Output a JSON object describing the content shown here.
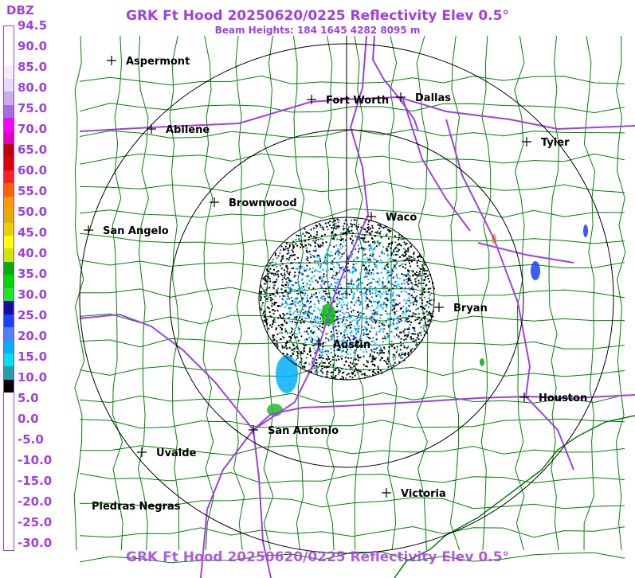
{
  "header": {
    "title": "GRK Ft Hood 20250620/0225 Reflectivity Elev 0.5°",
    "subtitle": "Beam Heights: 184 1645 4282 8095 m"
  },
  "footer": {
    "title": "GRK Ft Hood 20250620/0225 Reflectivity Elev 0.5°"
  },
  "legend": {
    "unit": "DBZ",
    "labels": [
      "94.5",
      "90.0",
      "85.0",
      "80.0",
      "75.0",
      "70.0",
      "65.0",
      "60.0",
      "55.0",
      "50.0",
      "45.0",
      "40.0",
      "35.0",
      "30.0",
      "25.0",
      "20.0",
      "15.0",
      "10.0",
      "5.0",
      "0.0",
      "-5.0",
      "-10.0",
      "-15.0",
      "-20.0",
      "-25.0",
      "-30.0"
    ],
    "colors": [
      "#ffffff",
      "#ffffff",
      "#ffffff",
      "#f4eefa",
      "#e6dcf2",
      "#c8aee8",
      "#a070e0",
      "#ff00ff",
      "#e000c0",
      "#c00000",
      "#e00000",
      "#ff2020",
      "#ff6000",
      "#ff9a00",
      "#e0b000",
      "#e8d000",
      "#ffff00",
      "#c8e800",
      "#00b000",
      "#00d800",
      "#20e820",
      "#1010a0",
      "#1840ff",
      "#5080ff",
      "#00b0ff",
      "#00e0f0",
      "#20a0a0",
      "#000000",
      "#ffffff",
      "#ffffff",
      "#ffffff",
      "#ffffff",
      "#ffffff",
      "#ffffff",
      "#ffffff",
      "#ffffff",
      "#ffffff",
      "#ffffff",
      "#ffffff",
      "#ffffff"
    ]
  },
  "map": {
    "colors": {
      "county": "#008000",
      "interstate": "#a040e0",
      "range_ring": "#000000",
      "radial": "#000000",
      "city": "#000000"
    },
    "cities": [
      {
        "name": "Aspermont"
      },
      {
        "name": "Fort Worth"
      },
      {
        "name": "Dallas"
      },
      {
        "name": "Abilene"
      },
      {
        "name": "Tyler"
      },
      {
        "name": "Brownwood"
      },
      {
        "name": "Waco"
      },
      {
        "name": "San Angelo"
      },
      {
        "name": "Bryan"
      },
      {
        "name": "Austin"
      },
      {
        "name": "Houston"
      },
      {
        "name": "San Antonio"
      },
      {
        "name": "Uvalde"
      },
      {
        "name": "Victoria"
      },
      {
        "name": "Piedras Negras"
      }
    ]
  }
}
